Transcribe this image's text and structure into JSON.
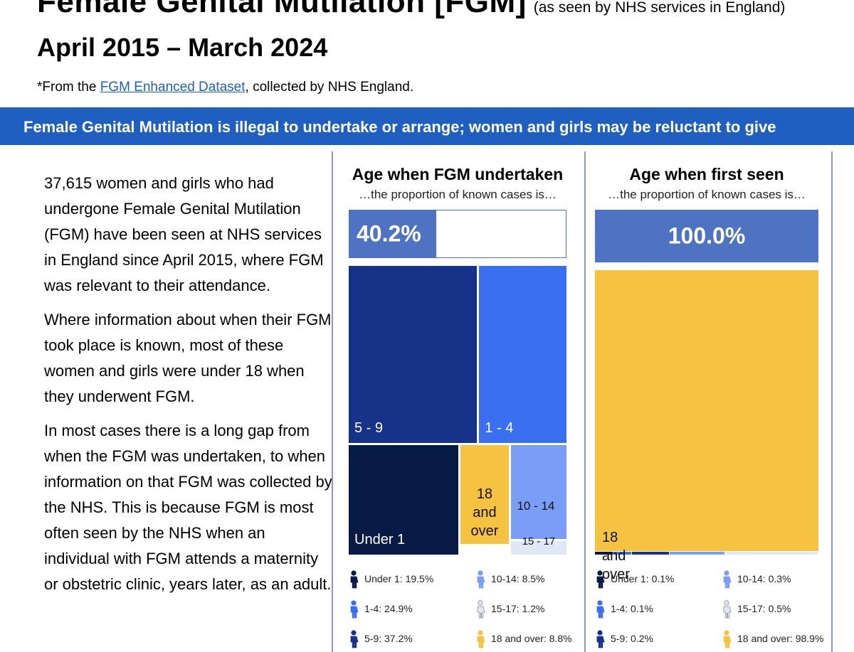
{
  "header": {
    "title": "Female Genital Mutilation [FGM]",
    "title_note": "(as seen by NHS services in England)",
    "period": "April 2015 – March 2024",
    "source_prefix": "*From the ",
    "source_link": "FGM Enhanced Dataset",
    "source_suffix": ", collected by NHS England."
  },
  "banner": {
    "text": "Female Genital Mutilation is illegal to undertake or arrange; women and girls may be reluctant to give"
  },
  "intro": {
    "paragraphs": [
      "37,615 women and girls who had undergone Female Genital Mutilation (FGM) have been seen at NHS services in England since April 2015, where FGM was relevant to their attendance.",
      "Where information about when their FGM took place is known, most of these women and girls were under 18 when they underwent FGM.",
      "In most cases there is a long gap from when the FGM was undertaken, to when information on that FGM was collected by the NHS. This is because FGM is most often seen by the NHS when an individual with FGM attends a maternity or obstetric clinic, years later, as an adult."
    ]
  },
  "colors": {
    "banner": "#1f5fbf",
    "known_fill": "#4e73c2",
    "under_1": "#071a45",
    "1_4": "#3a6ff0",
    "5_9": "#163389",
    "10_14": "#7a9ef5",
    "15_17": "#dfe9f6",
    "18_over": "#f5c242"
  },
  "chart_data": [
    {
      "type": "treemap",
      "title": "Age when FGM undertaken",
      "subtitle": "…the proportion of known cases is…",
      "known_proportion_label": "40.2%",
      "known_proportion": 0.402,
      "categories": [
        "Under 1",
        "1 - 4",
        "5 - 9",
        "10 - 14",
        "15 - 17",
        "18 and over"
      ],
      "values": [
        19.5,
        24.9,
        37.2,
        8.5,
        1.2,
        8.8
      ],
      "tile_labels": [
        "Under 1",
        "1 - 4",
        "5 - 9",
        "10 - 14",
        "15 - 17",
        "18 and over"
      ],
      "legend": [
        {
          "label": "Under 1: 19.5%",
          "icon": "person-icon",
          "color": "#071a45"
        },
        {
          "label": "10-14: 8.5%",
          "icon": "person-icon",
          "color": "#7a9ef5"
        },
        {
          "label": "1-4: 24.9%",
          "icon": "person-icon",
          "color": "#3a6ff0"
        },
        {
          "label": "15-17: 1.2%",
          "icon": "person-icon",
          "color": "#dfe9f6"
        },
        {
          "label": "5-9: 37.2%",
          "icon": "person-icon",
          "color": "#163389"
        },
        {
          "label": "18 and over: 8.8%",
          "icon": "person-icon",
          "color": "#f5c242"
        }
      ]
    },
    {
      "type": "treemap",
      "title": "Age when first seen",
      "subtitle": "…the proportion of known cases is…",
      "known_proportion_label": "100.0%",
      "known_proportion": 1.0,
      "categories": [
        "Under 1",
        "1 - 4",
        "5 - 9",
        "10 - 14",
        "15 - 17",
        "18 and over"
      ],
      "values": [
        0.1,
        0.1,
        0.2,
        0.3,
        0.5,
        98.9
      ],
      "tile_labels": [
        "",
        "",
        "",
        "",
        "",
        "18 and over"
      ],
      "legend": [
        {
          "label": "Under 1: 0.1%",
          "icon": "person-icon",
          "color": "#071a45"
        },
        {
          "label": "10-14: 0.3%",
          "icon": "person-icon",
          "color": "#7a9ef5"
        },
        {
          "label": "1-4: 0.1%",
          "icon": "person-icon",
          "color": "#3a6ff0"
        },
        {
          "label": "15-17: 0.5%",
          "icon": "person-icon",
          "color": "#dfe9f6"
        },
        {
          "label": "5-9: 0.2%",
          "icon": "person-icon",
          "color": "#163389"
        },
        {
          "label": "18 and over: 98.9%",
          "icon": "person-icon",
          "color": "#f5c242"
        }
      ]
    }
  ]
}
